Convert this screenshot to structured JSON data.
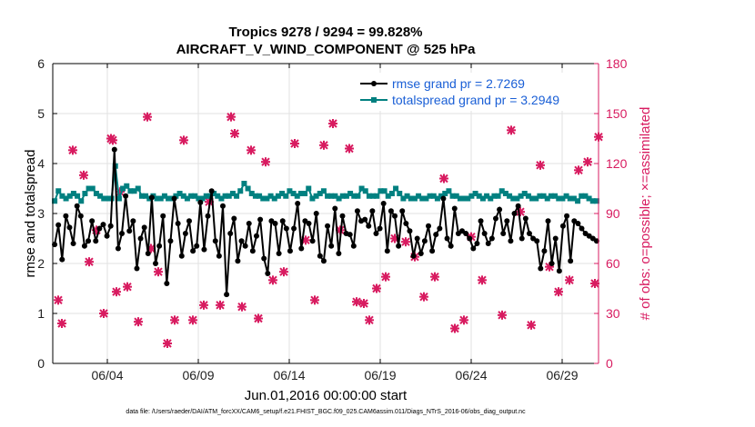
{
  "chart_data": {
    "type": "line",
    "title": "Tropics 9278 / 9294 = 99.828%",
    "subtitle": "AIRCRAFT_V_WIND_COMPONENT @ 525 hPa",
    "xlabel": "Jun.01,2016 00:00:00 start",
    "ylabel_left": "rmse and totalspread",
    "ylabel_right": "# of obs: o=possible; ×=assimilated",
    "xlim": [
      0.5,
      30.5
    ],
    "ylim_left": [
      0,
      6
    ],
    "ylim_right": [
      0,
      180
    ],
    "x_ticks": [
      3.5,
      8.5,
      13.5,
      18.5,
      23.5,
      28.5
    ],
    "x_tick_labels": [
      "06/04",
      "06/09",
      "06/14",
      "06/19",
      "06/24",
      "06/29"
    ],
    "y_ticks_left": [
      0,
      1,
      2,
      3,
      4,
      5,
      6
    ],
    "y_ticks_right": [
      0,
      30,
      60,
      90,
      120,
      150,
      180
    ],
    "legend_location": "top-right",
    "series": [
      {
        "name": "rmse grand pr = 2.7269",
        "axis": "left",
        "color": "#000000",
        "marker": "circle",
        "values": [
          2.38,
          2.77,
          2.08,
          2.95,
          2.72,
          2.4,
          3.15,
          2.95,
          2.35,
          2.45,
          2.85,
          2.45,
          2.7,
          2.78,
          2.55,
          2.75,
          4.28,
          2.3,
          2.6,
          3.35,
          2.65,
          2.85,
          1.9,
          2.5,
          2.72,
          2.2,
          3.32,
          2.0,
          2.35,
          2.95,
          1.6,
          2.45,
          3.3,
          2.8,
          2.15,
          2.6,
          2.85,
          2.25,
          2.35,
          3.22,
          2.28,
          2.95,
          3.45,
          2.45,
          2.15,
          3.15,
          1.38,
          2.6,
          2.9,
          2.05,
          2.45,
          2.35,
          2.8,
          2.25,
          2.55,
          2.88,
          2.1,
          1.8,
          2.85,
          2.8,
          2.2,
          2.85,
          2.7,
          2.25,
          2.7,
          3.2,
          2.3,
          2.85,
          2.8,
          2.45,
          3.0,
          2.15,
          2.05,
          2.75,
          2.35,
          3.1,
          2.2,
          2.95,
          2.6,
          2.58,
          2.35,
          3.05,
          2.85,
          2.88,
          2.75,
          3.05,
          2.6,
          2.7,
          3.2,
          2.25,
          3.05,
          2.95,
          2.35,
          3.05,
          2.8,
          2.65,
          2.15,
          2.5,
          2.2,
          2.45,
          2.75,
          2.25,
          2.58,
          2.7,
          3.3,
          2.5,
          2.35,
          3.1,
          2.6,
          2.65,
          2.6,
          2.5,
          2.3,
          2.4,
          2.85,
          2.6,
          2.4,
          2.5,
          2.9,
          3.08,
          2.6,
          2.85,
          2.45,
          3.0,
          3.15,
          2.5,
          2.9,
          2.6,
          2.5,
          2.45,
          1.9,
          2.25,
          2.85,
          2.0,
          2.5,
          1.85,
          2.75,
          2.95,
          2.05,
          2.85,
          2.8,
          2.7,
          2.6,
          2.55,
          2.5,
          2.45
        ]
      },
      {
        "name": "totalspread grand pr = 3.2949",
        "axis": "left",
        "color": "#008080",
        "marker": "square",
        "values": [
          3.25,
          3.45,
          3.35,
          3.3,
          3.35,
          3.4,
          3.35,
          3.25,
          3.4,
          3.5,
          3.5,
          3.4,
          3.35,
          3.3,
          3.3,
          3.3,
          3.95,
          3.3,
          3.5,
          3.55,
          3.45,
          3.45,
          3.5,
          3.35,
          3.35,
          3.3,
          3.35,
          3.3,
          3.3,
          3.35,
          3.3,
          3.3,
          3.35,
          3.4,
          3.35,
          3.3,
          3.35,
          3.35,
          3.3,
          3.3,
          3.35,
          3.35,
          3.4,
          3.35,
          3.3,
          3.35,
          3.35,
          3.4,
          3.35,
          3.45,
          3.6,
          3.5,
          3.4,
          3.35,
          3.35,
          3.3,
          3.3,
          3.35,
          3.3,
          3.35,
          3.4,
          3.35,
          3.45,
          3.4,
          3.35,
          3.4,
          3.4,
          3.5,
          3.3,
          3.35,
          3.4,
          3.45,
          3.35,
          3.35,
          3.35,
          3.3,
          3.35,
          3.35,
          3.4,
          3.35,
          3.35,
          3.5,
          3.45,
          3.35,
          3.35,
          3.35,
          3.45,
          3.45,
          3.35,
          3.4,
          3.5,
          3.4,
          3.3,
          3.35,
          3.3,
          3.3,
          3.35,
          3.3,
          3.3,
          3.35,
          3.35,
          3.3,
          3.35,
          3.4,
          3.45,
          3.35,
          3.35,
          3.3,
          3.3,
          3.3,
          3.35,
          3.4,
          3.35,
          3.3,
          3.35,
          3.3,
          3.35,
          3.35,
          3.45,
          3.4,
          3.35,
          3.3,
          3.3,
          3.35,
          3.4,
          3.35,
          3.3,
          3.3,
          3.35,
          3.35,
          3.3,
          3.35,
          3.35,
          3.3,
          3.3,
          3.35,
          3.3,
          3.3,
          3.25,
          3.35,
          3.35,
          3.3,
          3.25,
          3.25
        ]
      },
      {
        "name": "# obs possible / assimilated",
        "axis": "right",
        "color": "#d81b60",
        "marker": "star",
        "x": [
          0.8,
          1.0,
          1.6,
          2.2,
          2.5,
          2.9,
          3.3,
          3.7,
          3.8,
          4.0,
          4.2,
          4.6,
          5.2,
          5.7,
          5.9,
          6.3,
          6.8,
          7.2,
          7.7,
          8.2,
          8.8,
          9.1,
          9.7,
          10.3,
          10.5,
          10.9,
          11.4,
          11.8,
          12.2,
          12.6,
          13.2,
          13.8,
          14.4,
          14.9,
          15.4,
          15.9,
          16.3,
          16.8,
          17.2,
          17.6,
          17.9,
          18.3,
          18.8,
          19.3,
          19.9,
          20.4,
          20.9,
          21.5,
          22.0,
          22.6,
          23.1,
          23.5,
          24.1,
          24.6,
          25.2,
          25.7,
          26.2,
          26.8,
          27.3,
          27.8,
          28.3,
          28.9,
          29.4,
          29.9,
          30.3,
          30.5
        ],
        "values": [
          38,
          24,
          128,
          113,
          61,
          80,
          30,
          135,
          134,
          43,
          103,
          46,
          25,
          148,
          69,
          55,
          12,
          26,
          134,
          26,
          35,
          97,
          35,
          148,
          138,
          34,
          128,
          27,
          121,
          50,
          55,
          132,
          74,
          38,
          131,
          144,
          80,
          129,
          37,
          36,
          26,
          45,
          52,
          75,
          73,
          64,
          40,
          52,
          111,
          21,
          26,
          76,
          50,
          155,
          29,
          140,
          91,
          23,
          119,
          58,
          43,
          50,
          116,
          121,
          48,
          136
        ]
      }
    ]
  },
  "footer": "data file: /Users/raeder/DAI/ATM_forcXX/CAM6_setup/f.e21.FHIST_BGC.f09_025.CAM6assim.011/Diags_NTrS_2016-06/obs_diag_output.nc",
  "colors": {
    "rmse": "#000000",
    "spread": "#008080",
    "obs": "#d81b60",
    "axes": "#000000"
  }
}
